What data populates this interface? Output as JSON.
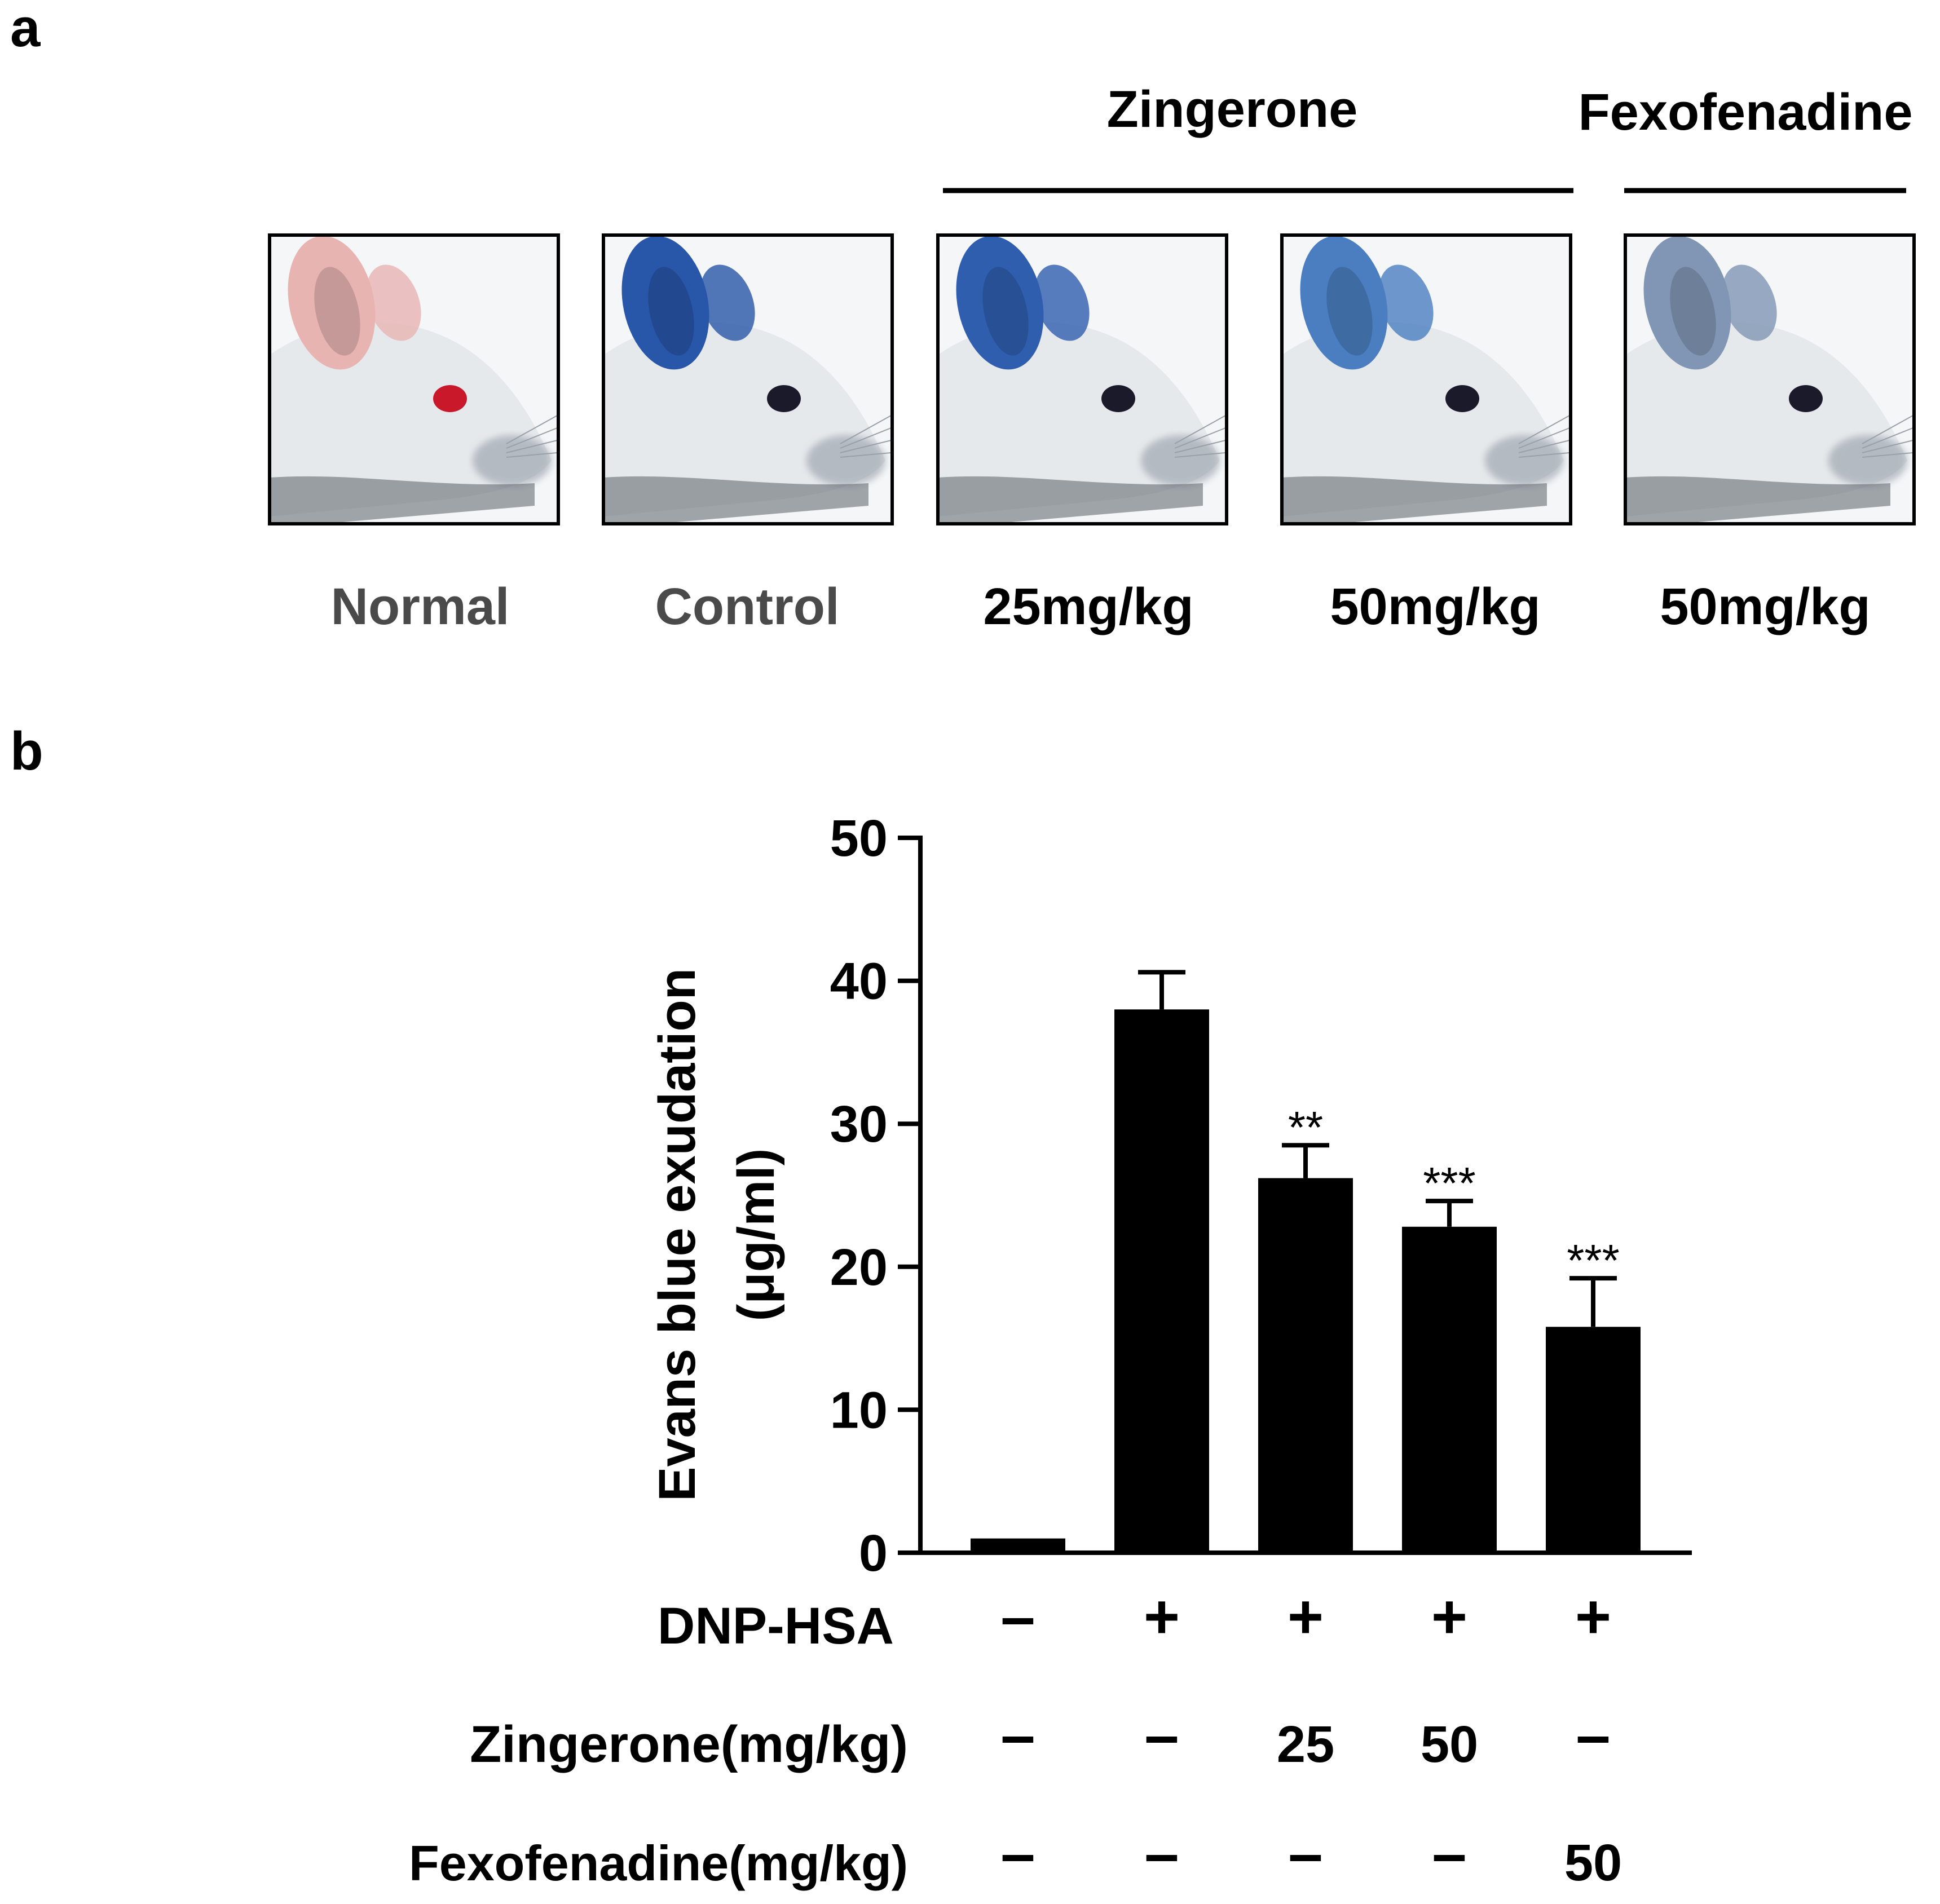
{
  "panel_a": {
    "panel_label": "a",
    "group_headers": [
      {
        "label": "Zingerone"
      },
      {
        "label": "Fexofenadine"
      }
    ],
    "photos": [
      {
        "label": "Normal",
        "label_color": "#4a4a4a",
        "ear_color": "#e7b4b2",
        "eye_color": "#c8182a"
      },
      {
        "label": "Control",
        "label_color": "#4a4a4a",
        "ear_color": "#2856a8",
        "eye_color": "#1a1a2a"
      },
      {
        "label": "25mg/kg",
        "label_color": "#000000",
        "ear_color": "#2f5eaf",
        "eye_color": "#1a1a2a"
      },
      {
        "label": "50mg/kg",
        "label_color": "#000000",
        "ear_color": "#4a7ec0",
        "eye_color": "#1a1a2a"
      },
      {
        "label": "50mg/kg",
        "label_color": "#000000",
        "ear_color": "#8096b4",
        "eye_color": "#1a1a2a"
      }
    ]
  },
  "panel_b": {
    "panel_label": "b",
    "table_rows": [
      {
        "label": "DNP-HSA",
        "values": [
          "–",
          "+",
          "+",
          "+",
          "+"
        ]
      },
      {
        "label": "Zingerone(mg/kg)",
        "values": [
          "–",
          "–",
          "25",
          "50",
          "–"
        ]
      },
      {
        "label": "Fexofenadine(mg/kg)",
        "values": [
          "–",
          "–",
          "–",
          "–",
          "50"
        ]
      }
    ]
  },
  "chart_data": {
    "type": "bar",
    "title": "",
    "ylabel_line1": "Evans blue exudation",
    "ylabel_line2": "(μg/ml)",
    "xlabel": "",
    "ylim": [
      0,
      50
    ],
    "yticks": [
      0,
      10,
      20,
      30,
      40,
      50
    ],
    "categories": [
      "Normal",
      "Control",
      "Zingerone 25mg/kg",
      "Zingerone 50mg/kg",
      "Fexofenadine 50mg/kg"
    ],
    "values": [
      1.0,
      38.0,
      26.2,
      22.8,
      15.8
    ],
    "errors": [
      0.1,
      2.6,
      2.3,
      1.8,
      3.4
    ],
    "significance": [
      "",
      "",
      "**",
      "***",
      "***"
    ],
    "bar_color": "#000000"
  }
}
